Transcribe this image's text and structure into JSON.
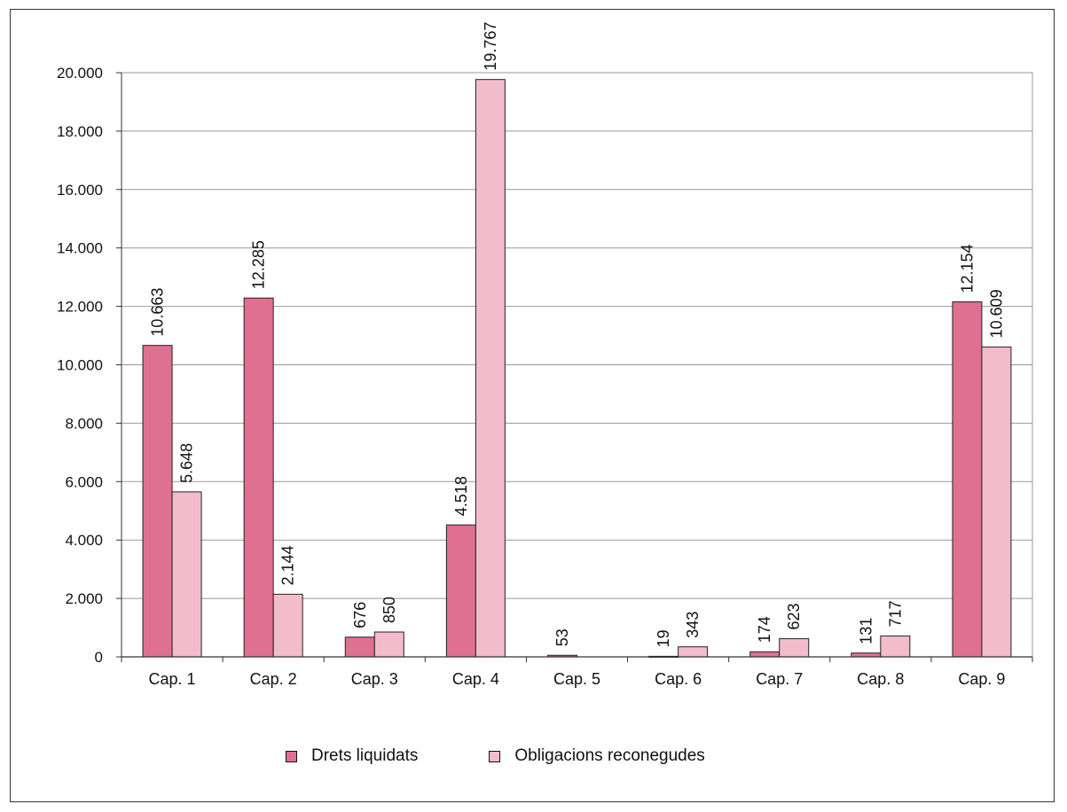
{
  "chart_data": {
    "type": "bar",
    "categories": [
      "Cap. 1",
      "Cap. 2",
      "Cap. 3",
      "Cap. 4",
      "Cap. 5",
      "Cap. 6",
      "Cap. 7",
      "Cap. 8",
      "Cap. 9"
    ],
    "series": [
      {
        "name": "Drets liquidats",
        "values": [
          10663,
          12285,
          676,
          4518,
          53,
          19,
          174,
          131,
          12154
        ],
        "labels": [
          "10.663",
          "12.285",
          "676",
          "4.518",
          "53",
          "19",
          "174",
          "131",
          "12.154"
        ],
        "color": "#e07092"
      },
      {
        "name": "Obligacions reconegudes",
        "values": [
          5648,
          2144,
          850,
          19767,
          0,
          343,
          623,
          717,
          10609
        ],
        "labels": [
          "5.648",
          "2.144",
          "850",
          "19.767",
          "",
          "343",
          "623",
          "717",
          "10.609"
        ],
        "color": "#f2bccc"
      }
    ],
    "yticks": [
      "0",
      "2.000",
      "4.000",
      "6.000",
      "8.000",
      "10.000",
      "12.000",
      "14.000",
      "16.000",
      "18.000",
      "20.000"
    ],
    "ylim": [
      0,
      20000
    ],
    "grid": true,
    "legend": "bottom"
  }
}
